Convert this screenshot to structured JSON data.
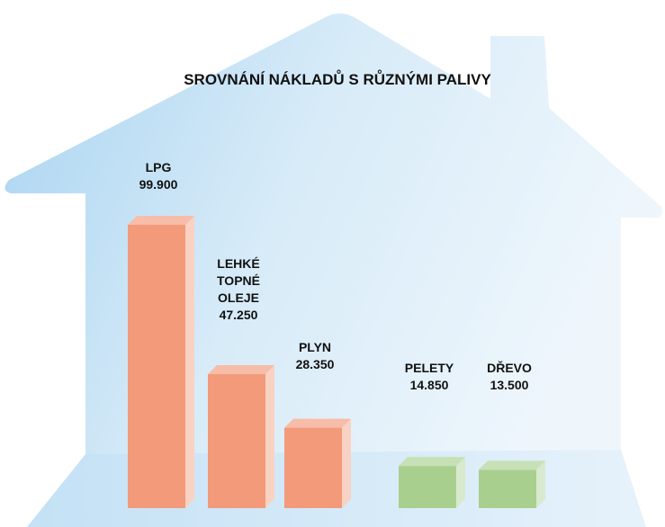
{
  "chart_data": {
    "type": "bar",
    "title": "SROVNÁNÍ NÁKLADŮ S RŮZNÝMI PALIVY",
    "categories": [
      "LPG",
      "LEHKÉ TOPNÉ OLEJE",
      "PLYN",
      "PELETY",
      "DŘEVO"
    ],
    "values": [
      99900,
      47250,
      28350,
      14850,
      13500
    ],
    "value_labels": [
      "99.900",
      "47.250",
      "28.350",
      "14.850",
      "13.500"
    ],
    "colors": [
      "#f29a7a",
      "#f29a7a",
      "#f29a7a",
      "#a9cf8f",
      "#a9cf8f"
    ]
  }
}
